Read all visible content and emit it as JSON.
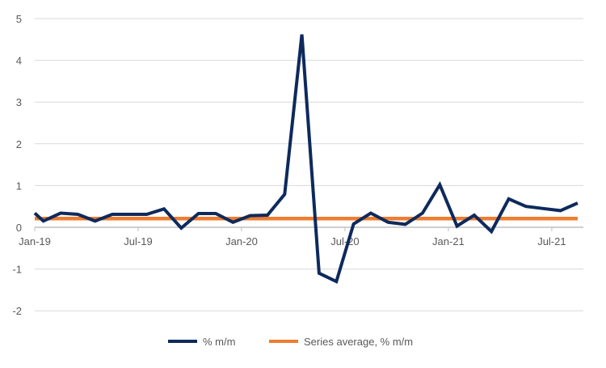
{
  "chart_data": {
    "type": "line",
    "title": "",
    "xlabel": "",
    "ylabel": "",
    "ylim": [
      -2,
      5
    ],
    "yticks": [
      "5",
      "4",
      "3",
      "2",
      "1",
      "0",
      "-1",
      "-2"
    ],
    "ytick_values": [
      5,
      4,
      3,
      2,
      1,
      0,
      -1,
      -2
    ],
    "xticks": [
      "Jan-19",
      "Jul-19",
      "Jan-20",
      "Jul-20",
      "Jan-21",
      "Jul-21"
    ],
    "xtick_months": [
      0,
      6,
      12,
      18,
      24,
      30
    ],
    "xlim_months": [
      0,
      31.5
    ],
    "grid": true,
    "legend_position": "bottom",
    "series": [
      {
        "name": "% m/m",
        "color": "#0e2a5c",
        "x_months": [
          0,
          0.5,
          1.5,
          2.5,
          3.5,
          4.5,
          5.5,
          6.5,
          7.5,
          8.5,
          9.5,
          10.5,
          11.5,
          12.5,
          13.5,
          14.5,
          15.5,
          16.5,
          17.5,
          18.5,
          19.5,
          20.5,
          21.5,
          22.5,
          23.5,
          24.5,
          25.5,
          26.5,
          27.5,
          28.5,
          29.5,
          30.5,
          31.5
        ],
        "values": [
          0.34,
          0.15,
          0.34,
          0.31,
          0.15,
          0.31,
          0.31,
          0.31,
          0.44,
          -0.02,
          0.33,
          0.33,
          0.12,
          0.28,
          0.29,
          0.79,
          4.62,
          -1.1,
          -1.3,
          0.08,
          0.34,
          0.12,
          0.07,
          0.34,
          1.02,
          0.03,
          0.29,
          -0.1,
          0.68,
          0.5,
          0.45,
          0.4,
          0.58
        ]
      },
      {
        "name": "Series average, % m/m",
        "color": "#ed7d31",
        "x_months": [
          0,
          31.5
        ],
        "values": [
          0.21,
          0.21
        ]
      }
    ]
  }
}
